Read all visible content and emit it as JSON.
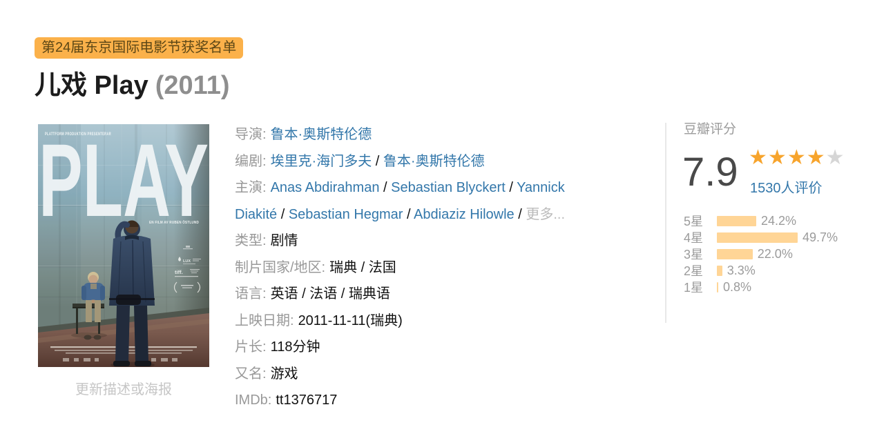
{
  "badge": {
    "text": "第24届东京国际电影节获奖名单"
  },
  "title": {
    "name": "儿戏 Play",
    "year": "(2011)"
  },
  "poster": {
    "caption": "更新描述或海报",
    "top_text": "PLATTFORM PRODUKTION PRESENTERAR",
    "title": "PLAY",
    "film_by": "EN FILM AV RUBEN ÖSTLUND",
    "lux": "LUX",
    "tiff": "tiff."
  },
  "info": [
    {
      "label": "导演:",
      "parts": [
        {
          "t": "鲁本·奥斯特伦德",
          "type": "link"
        }
      ]
    },
    {
      "label": "编剧:",
      "parts": [
        {
          "t": "埃里克·海门多夫",
          "type": "link"
        },
        {
          "t": " / ",
          "type": "sep"
        },
        {
          "t": "鲁本·奥斯特伦德",
          "type": "link"
        }
      ]
    },
    {
      "label": "主演:",
      "parts": [
        {
          "t": "Anas Abdirahman",
          "type": "link"
        },
        {
          "t": " / ",
          "type": "sep"
        },
        {
          "t": "Sebastian Blyckert",
          "type": "link"
        },
        {
          "t": " / ",
          "type": "sep"
        },
        {
          "t": "Yannick Diakité",
          "type": "link"
        },
        {
          "t": " / ",
          "type": "sep"
        },
        {
          "t": "Sebastian Hegmar",
          "type": "link"
        },
        {
          "t": " / ",
          "type": "sep"
        },
        {
          "t": "Abdiaziz Hilowle",
          "type": "link"
        },
        {
          "t": " / ",
          "type": "sep"
        },
        {
          "t": "更多...",
          "type": "muted"
        }
      ]
    },
    {
      "label": "类型:",
      "parts": [
        {
          "t": "剧情",
          "type": "txt"
        }
      ]
    },
    {
      "label": "制片国家/地区:",
      "parts": [
        {
          "t": "瑞典 / 法国",
          "type": "txt"
        }
      ]
    },
    {
      "label": "语言:",
      "parts": [
        {
          "t": "英语 / 法语 / 瑞典语",
          "type": "txt"
        }
      ]
    },
    {
      "label": "上映日期:",
      "parts": [
        {
          "t": "2011-11-11(瑞典)",
          "type": "txt"
        }
      ]
    },
    {
      "label": "片长:",
      "parts": [
        {
          "t": "118分钟",
          "type": "txt"
        }
      ]
    },
    {
      "label": "又名:",
      "parts": [
        {
          "t": "游戏",
          "type": "txt"
        }
      ]
    },
    {
      "label": "IMDb:",
      "parts": [
        {
          "t": "tt1376717",
          "type": "txt"
        }
      ]
    }
  ],
  "rating": {
    "header": "豆瓣评分",
    "score": "7.9",
    "stars_filled": 4,
    "stars_total": 5,
    "votes_text": "1530人评价",
    "distribution": [
      {
        "label": "5星",
        "pct": 24.2,
        "pct_text": "24.2%"
      },
      {
        "label": "4星",
        "pct": 49.7,
        "pct_text": "49.7%"
      },
      {
        "label": "3星",
        "pct": 22.0,
        "pct_text": "22.0%"
      },
      {
        "label": "2星",
        "pct": 3.3,
        "pct_text": "3.3%"
      },
      {
        "label": "1星",
        "pct": 0.8,
        "pct_text": "0.8%"
      }
    ]
  },
  "colors": {
    "badge-bg": "#fbb14a",
    "badge-text": "#5c4716",
    "link": "#3377aa",
    "star": "#f7a42c",
    "star-empty": "#d6d6d6",
    "bar": "#ffd596",
    "score": "#494949",
    "label": "#999999",
    "muted": "#bbbbbb",
    "text": "#111111",
    "gray-header": "#9b9b9b",
    "divider": "#e8e8e8",
    "caption": "#c6c6c6"
  }
}
